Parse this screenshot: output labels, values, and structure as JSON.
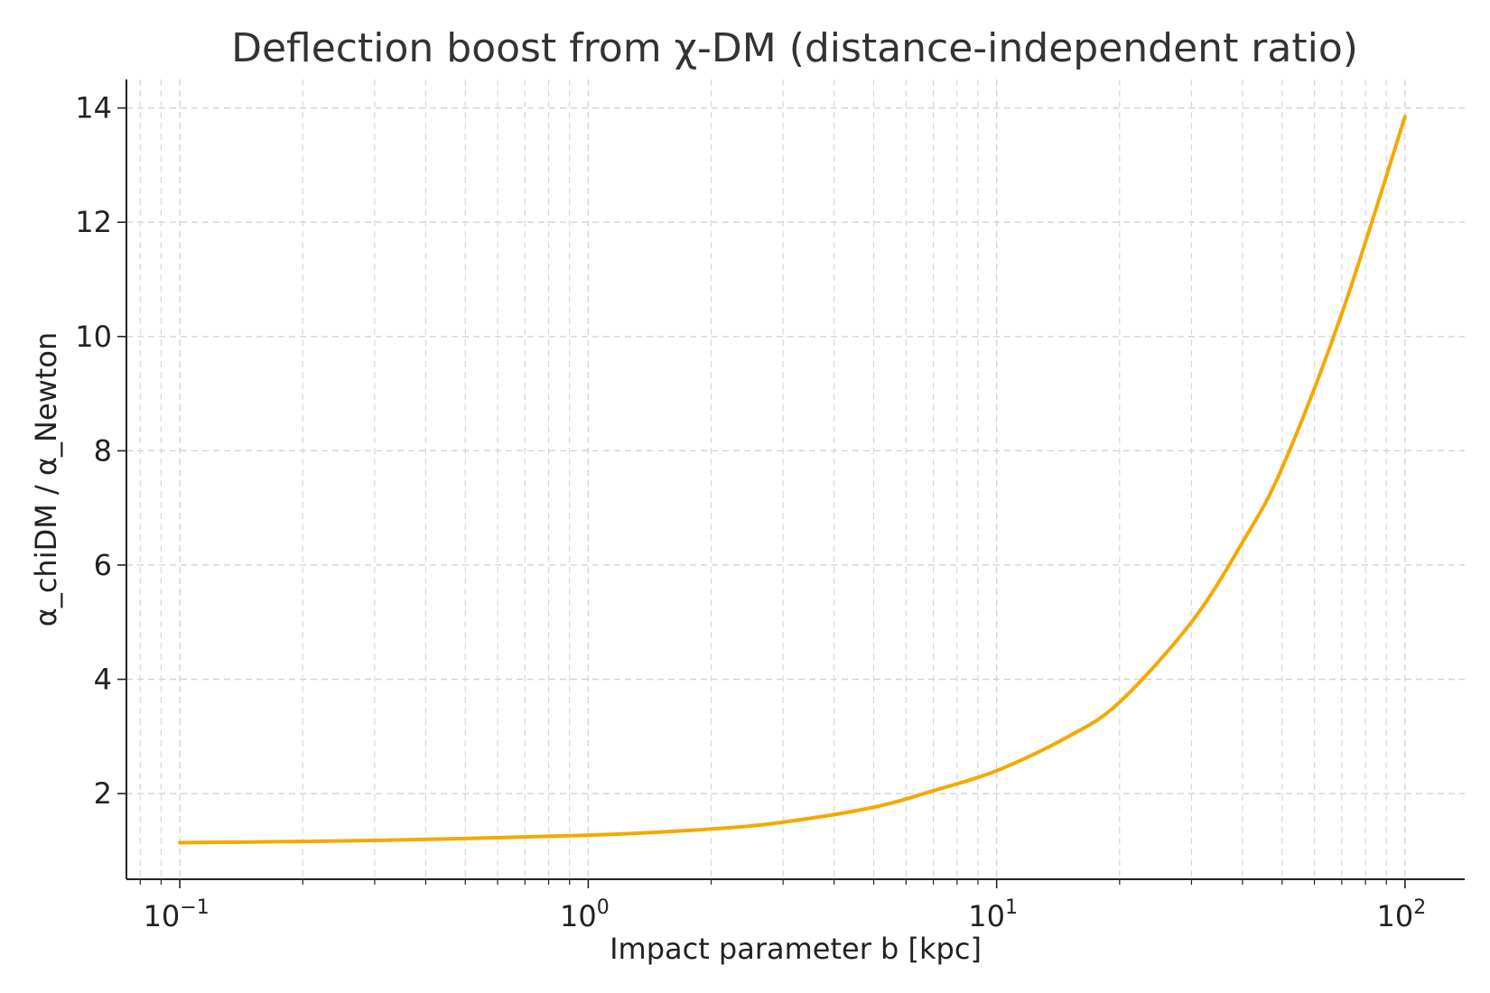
{
  "chart_data": {
    "type": "line",
    "title": "Deflection boost from χ-DM (distance-independent ratio)",
    "xlabel": "Impact parameter b [kpc]",
    "ylabel": "α_chiDM / α_Newton",
    "xscale": "log",
    "xlim": [
      0.074,
      140
    ],
    "ylim": [
      0.5,
      14.5
    ],
    "grid": true,
    "x_ticks": [
      {
        "value": 0.1,
        "base": "10",
        "exp": "−1"
      },
      {
        "value": 1,
        "base": "10",
        "exp": "0"
      },
      {
        "value": 10,
        "base": "10",
        "exp": "1"
      },
      {
        "value": 100,
        "base": "10",
        "exp": "2"
      }
    ],
    "y_ticks": [
      {
        "value": 2,
        "label": "2"
      },
      {
        "value": 4,
        "label": "4"
      },
      {
        "value": 6,
        "label": "6"
      },
      {
        "value": 8,
        "label": "8"
      },
      {
        "value": 10,
        "label": "10"
      },
      {
        "value": 12,
        "label": "12"
      },
      {
        "value": 14,
        "label": "14"
      }
    ],
    "series": [
      {
        "color": "#f5a800",
        "x": [
          0.1,
          0.3,
          1,
          2,
          3,
          5,
          7,
          10,
          15,
          20,
          30,
          40,
          50,
          70,
          100
        ],
        "y": [
          1.14,
          1.18,
          1.27,
          1.38,
          1.5,
          1.76,
          2.05,
          2.4,
          3.0,
          3.6,
          5.0,
          6.4,
          7.7,
          10.4,
          13.85
        ]
      }
    ]
  }
}
